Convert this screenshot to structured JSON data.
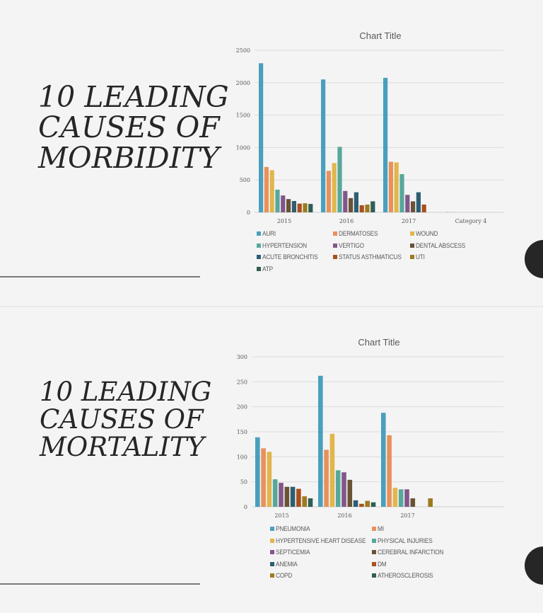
{
  "slides": [
    {
      "heading": [
        "10 LEADING",
        "CAUSES  OF",
        "MORBIDITY"
      ],
      "chart": {
        "title": "Chart Title"
      }
    },
    {
      "heading": [
        "10 LEADING",
        "CAUSES OF",
        "MORTALITY"
      ],
      "chart": {
        "title": "Chart Title"
      }
    }
  ],
  "chart_data": [
    {
      "type": "bar",
      "title": "Chart Title",
      "xlabel": "",
      "ylabel": "",
      "ylim": [
        0,
        2500
      ],
      "yticks": [
        0,
        500,
        1000,
        1500,
        2000,
        2500
      ],
      "grid": true,
      "legend_position": "bottom",
      "categories": [
        "2015",
        "2016",
        "2017",
        "Category 4"
      ],
      "series": [
        {
          "name": "AURI",
          "color": "#4A9FBD",
          "values": [
            2300,
            2050,
            2075,
            3
          ]
        },
        {
          "name": "DERMATOSES",
          "color": "#E8915A",
          "values": [
            700,
            640,
            780,
            2
          ]
        },
        {
          "name": "WOUND",
          "color": "#E2B64D",
          "values": [
            650,
            760,
            770,
            2
          ]
        },
        {
          "name": "HYPERTENSION",
          "color": "#56A89A",
          "values": [
            350,
            1010,
            590,
            0
          ]
        },
        {
          "name": "VERTIGO",
          "color": "#82568A",
          "values": [
            260,
            330,
            270,
            0
          ]
        },
        {
          "name": "DENTAL ABSCESS",
          "color": "#6A5236",
          "values": [
            205,
            220,
            170,
            0
          ]
        },
        {
          "name": "ACUTE BRONCHITIS",
          "color": "#2D5E73",
          "values": [
            175,
            310,
            310,
            0
          ]
        },
        {
          "name": "STATUS ASTHMATICUS",
          "color": "#A8501E",
          "values": [
            135,
            110,
            120,
            0
          ]
        },
        {
          "name": "UTI",
          "color": "#9E7A1F",
          "values": [
            140,
            120,
            0,
            0
          ]
        },
        {
          "name": "ATP",
          "color": "#2E5E55",
          "values": [
            130,
            170,
            0,
            0
          ]
        }
      ]
    },
    {
      "type": "bar",
      "title": "Chart Title",
      "xlabel": "",
      "ylabel": "",
      "ylim": [
        0,
        300
      ],
      "yticks": [
        0,
        50,
        100,
        150,
        200,
        250,
        300
      ],
      "grid": true,
      "legend_position": "bottom",
      "categories": [
        "2015",
        "2016",
        "2017"
      ],
      "series": [
        {
          "name": "PNEUMONIA",
          "color": "#4A9FBD",
          "values": [
            139,
            262,
            188
          ]
        },
        {
          "name": "MI",
          "color": "#E8915A",
          "values": [
            117,
            114,
            143
          ]
        },
        {
          "name": "HYPERTENSIVE HEART DISEASE",
          "color": "#E2B64D",
          "values": [
            110,
            146,
            38
          ]
        },
        {
          "name": "PHYSICAL INJURIES",
          "color": "#56A89A",
          "values": [
            55,
            73,
            35
          ]
        },
        {
          "name": "SEPTICEMIA",
          "color": "#82568A",
          "values": [
            48,
            69,
            35
          ]
        },
        {
          "name": "CEREBRAL INFARCTION",
          "color": "#6A5236",
          "values": [
            40,
            54,
            17
          ]
        },
        {
          "name": "ANEMIA",
          "color": "#2D5E73",
          "values": [
            40,
            13,
            0
          ]
        },
        {
          "name": "DM",
          "color": "#A8501E",
          "values": [
            36,
            6,
            0
          ]
        },
        {
          "name": "COPD",
          "color": "#9E7A1F",
          "values": [
            21,
            12,
            17
          ]
        },
        {
          "name": "ATHEROSCLEROSIS",
          "color": "#2E5E55",
          "values": [
            17,
            9,
            0
          ]
        }
      ]
    }
  ]
}
